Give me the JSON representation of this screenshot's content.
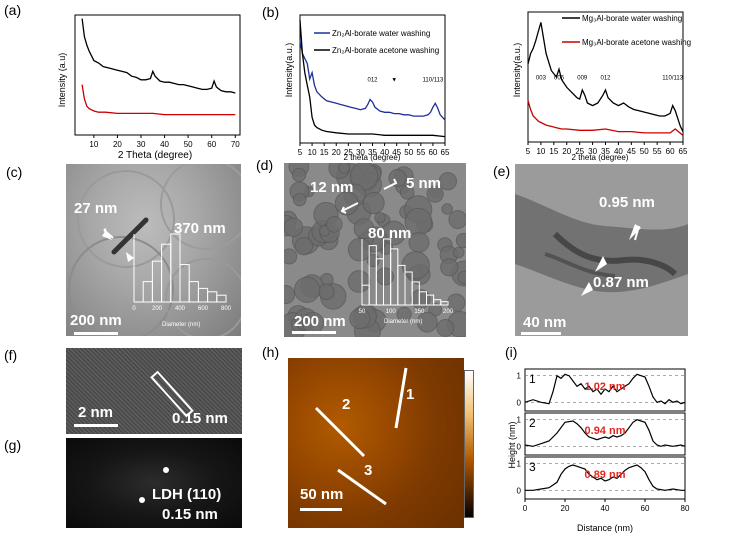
{
  "labels": {
    "a": "(a)",
    "b": "(b)",
    "c": "(c)",
    "d": "(d)",
    "e": "(e)",
    "f": "(f)",
    "g": "(g)",
    "h": "(h)",
    "i": "(i)"
  },
  "chart_a": {
    "type": "line",
    "ylabel": "Intensity (a.u)",
    "xlabel": "2 Theta (degree)",
    "xticks": [
      "10",
      "20",
      "30",
      "40",
      "50",
      "60",
      "70"
    ],
    "series": [
      {
        "color": "#000000",
        "x": [
          5,
          6,
          7,
          8,
          9,
          10,
          12,
          14,
          16,
          18,
          20,
          22,
          24,
          26,
          28,
          30,
          32,
          34,
          35,
          36,
          38,
          40,
          42,
          44,
          46,
          48,
          50,
          52,
          54,
          56,
          58,
          60,
          61,
          62,
          64,
          66,
          68,
          70
        ],
        "y": [
          0.97,
          0.82,
          0.75,
          0.7,
          0.66,
          0.62,
          0.6,
          0.57,
          0.56,
          0.55,
          0.54,
          0.53,
          0.52,
          0.49,
          0.48,
          0.46,
          0.46,
          0.47,
          0.53,
          0.49,
          0.45,
          0.44,
          0.44,
          0.43,
          0.42,
          0.42,
          0.41,
          0.4,
          0.39,
          0.38,
          0.38,
          0.39,
          0.45,
          0.4,
          0.37,
          0.36,
          0.36,
          0.35
        ]
      },
      {
        "color": "#cc0000",
        "x": [
          5,
          6,
          7,
          8,
          9,
          10,
          12,
          15,
          20,
          25,
          30,
          35,
          40,
          45,
          50,
          55,
          60,
          65,
          70
        ],
        "y": [
          0.42,
          0.3,
          0.24,
          0.22,
          0.21,
          0.2,
          0.19,
          0.19,
          0.18,
          0.18,
          0.18,
          0.18,
          0.17,
          0.17,
          0.17,
          0.17,
          0.17,
          0.17,
          0.17
        ]
      }
    ]
  },
  "chart_b1": {
    "type": "line",
    "ylabel": "Intensity(a.u.)",
    "xlabel": "2 theta (degree)",
    "xticks": [
      "5",
      "10",
      "15",
      "20",
      "25",
      "30",
      "35",
      "40",
      "45",
      "50",
      "55",
      "60",
      "65"
    ],
    "legend": [
      {
        "label": "Zn₂Al-borate water washing",
        "color": "#1f2f9a"
      },
      {
        "label": "Zn₂Al-borate acetone washing",
        "color": "#000000"
      }
    ],
    "annotations": [
      {
        "text": "012",
        "x": 35
      },
      {
        "text": "▼",
        "x": 44
      },
      {
        "text": "110/113",
        "x": 60
      }
    ],
    "series": [
      {
        "color": "#1f2f9a",
        "x": [
          5,
          6,
          7,
          8,
          9,
          10,
          11,
          12,
          14,
          16,
          18,
          20,
          22,
          24,
          26,
          28,
          30,
          32,
          33,
          34,
          35,
          36,
          38,
          40,
          42,
          44,
          46,
          48,
          50,
          52,
          54,
          56,
          58,
          59,
          60,
          61,
          62,
          63,
          64,
          65
        ],
        "y": [
          0.8,
          0.7,
          0.66,
          0.62,
          0.5,
          0.55,
          0.45,
          0.4,
          0.36,
          0.33,
          0.32,
          0.31,
          0.3,
          0.29,
          0.28,
          0.27,
          0.26,
          0.27,
          0.3,
          0.34,
          0.32,
          0.28,
          0.25,
          0.24,
          0.24,
          0.23,
          0.23,
          0.22,
          0.22,
          0.21,
          0.21,
          0.21,
          0.22,
          0.24,
          0.28,
          0.31,
          0.27,
          0.22,
          0.2,
          0.18
        ]
      },
      {
        "color": "#000000",
        "x": [
          5,
          6,
          7,
          8,
          9,
          10,
          11,
          12,
          14,
          16,
          20,
          25,
          30,
          35,
          40,
          45,
          50,
          55,
          60,
          65
        ],
        "y": [
          0.96,
          0.7,
          0.55,
          0.45,
          0.36,
          0.2,
          0.14,
          0.12,
          0.1,
          0.09,
          0.08,
          0.07,
          0.07,
          0.07,
          0.06,
          0.06,
          0.06,
          0.06,
          0.06,
          0.05
        ]
      }
    ]
  },
  "chart_b2": {
    "type": "line",
    "ylabel": "Intensity(a.u.)",
    "xlabel": "2 theta (degree)",
    "xticks": [
      "5",
      "10",
      "15",
      "20",
      "25",
      "30",
      "35",
      "40",
      "45",
      "50",
      "55",
      "60",
      "65"
    ],
    "legend": [
      {
        "label": "Mg₃Al-borate water washing",
        "color": "#000000"
      },
      {
        "label": "Mg₃Al-borate acetone washing",
        "color": "#cc0000"
      }
    ],
    "annotations": [
      {
        "text": "003",
        "x": 10
      },
      {
        "text": "006",
        "x": 17
      },
      {
        "text": "009",
        "x": 26
      },
      {
        "text": "012",
        "x": 35
      },
      {
        "text": "110/113",
        "x": 61
      }
    ],
    "series": [
      {
        "color": "#000000",
        "x": [
          5,
          6,
          7,
          8,
          9,
          10,
          11,
          12,
          14,
          16,
          17,
          18,
          20,
          22,
          24,
          25,
          26,
          27,
          28,
          30,
          32,
          34,
          35,
          36,
          38,
          40,
          42,
          44,
          46,
          48,
          50,
          52,
          54,
          56,
          58,
          60,
          61,
          62,
          63,
          64,
          65
        ],
        "y": [
          0.6,
          0.68,
          0.72,
          0.78,
          0.85,
          0.92,
          0.8,
          0.68,
          0.55,
          0.5,
          0.56,
          0.48,
          0.42,
          0.38,
          0.34,
          0.33,
          0.4,
          0.36,
          0.3,
          0.28,
          0.3,
          0.36,
          0.4,
          0.34,
          0.3,
          0.28,
          0.3,
          0.27,
          0.25,
          0.24,
          0.23,
          0.22,
          0.21,
          0.2,
          0.2,
          0.22,
          0.28,
          0.24,
          0.18,
          0.12,
          0.08
        ]
      },
      {
        "color": "#cc0000",
        "x": [
          5,
          6,
          7,
          8,
          9,
          10,
          12,
          14,
          16,
          18,
          20,
          25,
          30,
          35,
          40,
          45,
          50,
          55,
          60,
          62,
          65
        ],
        "y": [
          0.32,
          0.25,
          0.2,
          0.18,
          0.16,
          0.15,
          0.13,
          0.12,
          0.11,
          0.1,
          0.1,
          0.09,
          0.09,
          0.1,
          0.08,
          0.08,
          0.07,
          0.07,
          0.07,
          0.1,
          0.05
        ]
      }
    ]
  },
  "panel_c": {
    "measure": "27 nm",
    "scale": "200 nm",
    "hist": {
      "label": "370 nm",
      "xlabel": "Diameter (nm)",
      "xticks": [
        "0",
        "200",
        "400",
        "600",
        "800"
      ],
      "values": [
        0,
        0.3,
        0.6,
        0.85,
        1.0,
        0.55,
        0.3,
        0.2,
        0.15,
        0.1
      ]
    }
  },
  "panel_d": {
    "measure1": "12 nm",
    "measure2": "5 nm",
    "scale": "200 nm",
    "hist": {
      "label": "80 nm",
      "xlabel": "Diameter (nm)",
      "xticks": [
        "50",
        "100",
        "150",
        "200"
      ],
      "values": [
        0.3,
        0.9,
        0.7,
        1.0,
        0.85,
        0.6,
        0.5,
        0.35,
        0.2,
        0.15,
        0.08,
        0.05
      ]
    }
  },
  "panel_e": {
    "measure1": "0.95 nm",
    "measure2": "0.87 nm",
    "scale": "40 nm"
  },
  "panel_f": {
    "scale": "2 nm",
    "measure": "0.15 nm"
  },
  "panel_g": {
    "label1": "LDH (110)",
    "label2": "0.15 nm"
  },
  "panel_h": {
    "scale": "50 nm",
    "lines": [
      "1",
      "2",
      "3"
    ]
  },
  "chart_i": {
    "type": "line",
    "ylabel": "Height (nm)",
    "xlabel": "Distance (nm)",
    "xticks": [
      "0",
      "20",
      "40",
      "60",
      "80"
    ],
    "yticks": [
      "0",
      "1"
    ],
    "profiles": [
      {
        "name": "1",
        "value": "1.02 nm",
        "x": [
          0,
          4,
          8,
          12,
          14,
          16,
          18,
          20,
          22,
          24,
          26,
          28,
          30,
          32,
          34,
          36,
          38,
          40,
          42,
          44,
          46,
          48,
          50,
          52,
          54,
          56,
          58,
          60,
          62,
          64,
          66,
          68,
          70,
          72,
          74,
          76,
          78,
          80
        ],
        "y": [
          0,
          0.1,
          0,
          -0.05,
          0.4,
          1.0,
          0.9,
          1.05,
          1.0,
          0.8,
          0.6,
          0.7,
          0.5,
          0.6,
          0.4,
          0.5,
          0.3,
          0.5,
          0.4,
          0.6,
          0.4,
          0.5,
          0.6,
          0.7,
          0.9,
          1.05,
          1.0,
          0.95,
          0.6,
          0.2,
          0,
          0.05,
          -0.05,
          0.1,
          0,
          0.05,
          -0.05,
          0
        ]
      },
      {
        "name": "2",
        "value": "0.94 nm",
        "x": [
          0,
          4,
          8,
          12,
          16,
          20,
          24,
          26,
          28,
          30,
          32,
          34,
          36,
          38,
          40,
          42,
          44,
          46,
          48,
          50,
          52,
          54,
          56,
          58,
          60,
          62,
          64,
          66,
          68,
          70,
          74,
          78,
          80
        ],
        "y": [
          0.05,
          0,
          0.1,
          0.2,
          0.5,
          0.9,
          0.95,
          0.85,
          0.7,
          0.5,
          0.35,
          0.3,
          0.25,
          0.3,
          0.35,
          0.3,
          0.4,
          0.35,
          0.4,
          0.5,
          0.7,
          0.9,
          1.0,
          0.95,
          0.9,
          0.6,
          0.2,
          0.05,
          0,
          0.05,
          0,
          0.05,
          0
        ]
      },
      {
        "name": "3",
        "value": "0.89 nm",
        "x": [
          0,
          4,
          8,
          12,
          16,
          18,
          20,
          22,
          24,
          26,
          28,
          30,
          32,
          34,
          36,
          38,
          40,
          42,
          44,
          46,
          48,
          50,
          52,
          54,
          56,
          58,
          60,
          62,
          64,
          66,
          70,
          74,
          78,
          80
        ],
        "y": [
          0,
          0,
          0.05,
          0.1,
          0.3,
          0.6,
          0.8,
          0.9,
          0.95,
          0.9,
          0.85,
          0.8,
          0.6,
          0.5,
          0.4,
          0.45,
          0.35,
          0.4,
          0.5,
          0.45,
          0.6,
          0.75,
          0.85,
          0.9,
          0.95,
          0.85,
          0.7,
          0.4,
          0.15,
          0.05,
          0,
          0.05,
          0,
          0
        ]
      }
    ]
  }
}
